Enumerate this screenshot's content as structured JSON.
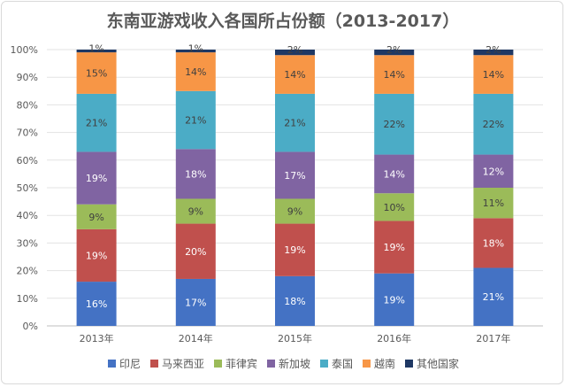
{
  "chart_data": {
    "type": "bar",
    "stacked": true,
    "percent_stacked": true,
    "title": "东南亚游戏收入各国所占份额（2013-2017）",
    "xlabel": "",
    "ylabel": "",
    "ylim": [
      0,
      100
    ],
    "y_ticks": [
      "0%",
      "10%",
      "20%",
      "30%",
      "40%",
      "50%",
      "60%",
      "70%",
      "80%",
      "90%",
      "100%"
    ],
    "categories": [
      "2013年",
      "2014年",
      "2015年",
      "2016年",
      "2017年"
    ],
    "grid": true,
    "legend_position": "bottom",
    "series": [
      {
        "name": "印尼",
        "color": "#4472c4",
        "label_color": "#ffffff",
        "values": [
          16,
          17,
          18,
          19,
          21
        ]
      },
      {
        "name": "马来西亚",
        "color": "#c0504d",
        "label_color": "#ffffff",
        "values": [
          19,
          20,
          19,
          19,
          18
        ]
      },
      {
        "name": "菲律宾",
        "color": "#9bbb59",
        "label_color": "#404040",
        "values": [
          9,
          9,
          9,
          10,
          11
        ]
      },
      {
        "name": "新加坡",
        "color": "#8064a2",
        "label_color": "#ffffff",
        "values": [
          19,
          18,
          17,
          14,
          12
        ]
      },
      {
        "name": "泰国",
        "color": "#4bacc6",
        "label_color": "#404040",
        "values": [
          21,
          21,
          21,
          22,
          22
        ]
      },
      {
        "name": "越南",
        "color": "#f79646",
        "label_color": "#404040",
        "values": [
          15,
          14,
          14,
          14,
          14
        ]
      },
      {
        "name": "其他国家",
        "color": "#1f3864",
        "label_color": "#404040",
        "values": [
          1,
          1,
          2,
          2,
          2
        ]
      }
    ]
  }
}
